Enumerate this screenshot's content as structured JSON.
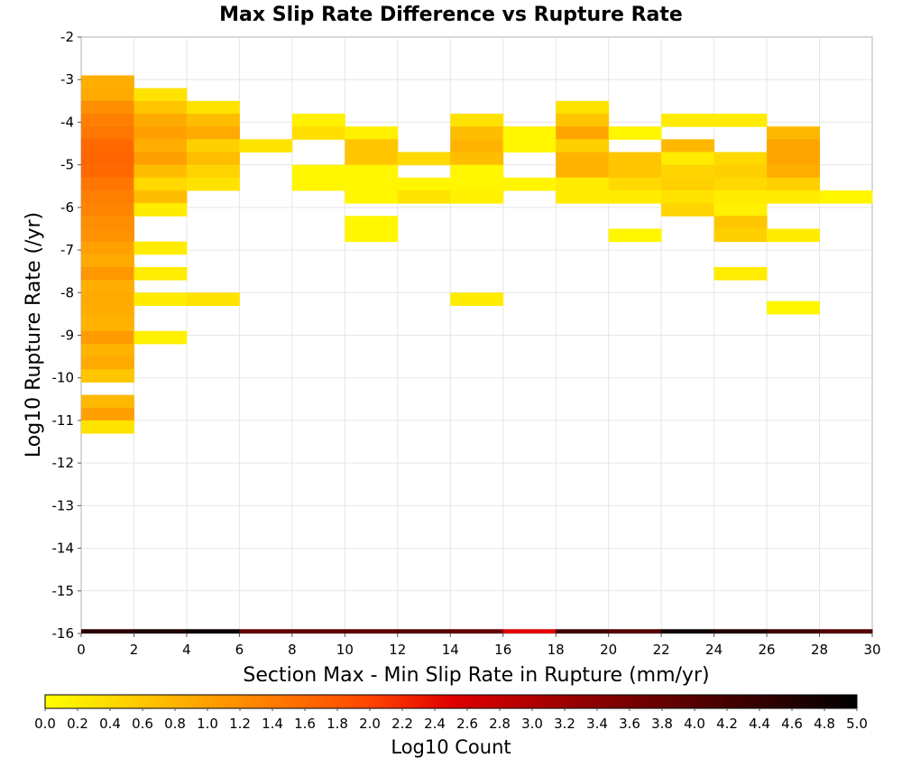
{
  "chart_data": {
    "type": "heatmap",
    "title": "Max Slip Rate Difference vs Rupture Rate",
    "xlabel": "Section Max - Min Slip Rate in Rupture (mm/yr)",
    "ylabel": "Log10 Rupture Rate (/yr)",
    "xlim": [
      0,
      30
    ],
    "ylim": [
      -16,
      -2
    ],
    "x_ticks": [
      "0",
      "2",
      "4",
      "6",
      "8",
      "10",
      "12",
      "14",
      "16",
      "18",
      "20",
      "22",
      "24",
      "26",
      "28",
      "30"
    ],
    "y_ticks": [
      "-2",
      "-3",
      "-4",
      "-5",
      "-6",
      "-7",
      "-8",
      "-9",
      "-10",
      "-11",
      "-12",
      "-13",
      "-14",
      "-15",
      "-16"
    ],
    "grid": true,
    "colorbar": {
      "label": "Log10 Count",
      "range": [
        0,
        5
      ],
      "ticks": [
        "0.0",
        "0.2",
        "0.4",
        "0.6",
        "0.8",
        "1.0",
        "1.2",
        "1.4",
        "1.6",
        "1.8",
        "2.0",
        "2.2",
        "2.4",
        "2.6",
        "2.8",
        "3.0",
        "3.2",
        "3.4",
        "3.6",
        "3.8",
        "4.0",
        "4.2",
        "4.4",
        "4.6",
        "4.8",
        "5.0"
      ],
      "colors": [
        "#ffff00",
        "#ffa000",
        "#ff4500",
        "#e00000",
        "#800000",
        "#000000"
      ]
    },
    "x_bin_width": 2,
    "y_bin_height": 0.3,
    "cells": [
      {
        "x": 1,
        "y": -3.05,
        "v": 0.85
      },
      {
        "x": 1,
        "y": -3.35,
        "v": 0.9
      },
      {
        "x": 1,
        "y": -3.65,
        "v": 1.2
      },
      {
        "x": 1,
        "y": -3.95,
        "v": 1.35
      },
      {
        "x": 1,
        "y": -4.25,
        "v": 1.45
      },
      {
        "x": 1,
        "y": -4.55,
        "v": 1.6
      },
      {
        "x": 1,
        "y": -4.85,
        "v": 1.65
      },
      {
        "x": 1,
        "y": -5.15,
        "v": 1.6
      },
      {
        "x": 1,
        "y": -5.45,
        "v": 1.45
      },
      {
        "x": 1,
        "y": -5.75,
        "v": 1.35
      },
      {
        "x": 1,
        "y": -6.05,
        "v": 1.3
      },
      {
        "x": 1,
        "y": -6.35,
        "v": 1.2
      },
      {
        "x": 1,
        "y": -6.65,
        "v": 1.15
      },
      {
        "x": 1,
        "y": -6.95,
        "v": 1.0
      },
      {
        "x": 1,
        "y": -7.25,
        "v": 0.9
      },
      {
        "x": 1,
        "y": -7.55,
        "v": 1.1
      },
      {
        "x": 1,
        "y": -7.85,
        "v": 0.85
      },
      {
        "x": 1,
        "y": -8.15,
        "v": 0.9
      },
      {
        "x": 1,
        "y": -8.45,
        "v": 0.85
      },
      {
        "x": 1,
        "y": -8.75,
        "v": 0.8
      },
      {
        "x": 1,
        "y": -9.05,
        "v": 1.05
      },
      {
        "x": 1,
        "y": -9.35,
        "v": 0.8
      },
      {
        "x": 1,
        "y": -9.65,
        "v": 0.9
      },
      {
        "x": 1,
        "y": -9.95,
        "v": 0.6
      },
      {
        "x": 1,
        "y": -10.55,
        "v": 0.75
      },
      {
        "x": 1,
        "y": -10.85,
        "v": 1.0
      },
      {
        "x": 1,
        "y": -11.15,
        "v": 0.3
      },
      {
        "x": 3,
        "y": -3.35,
        "v": 0.3
      },
      {
        "x": 3,
        "y": -3.65,
        "v": 0.6
      },
      {
        "x": 3,
        "y": -3.95,
        "v": 0.9
      },
      {
        "x": 3,
        "y": -4.25,
        "v": 1.0
      },
      {
        "x": 3,
        "y": -4.55,
        "v": 0.85
      },
      {
        "x": 3,
        "y": -4.85,
        "v": 1.0
      },
      {
        "x": 3,
        "y": -5.15,
        "v": 0.7
      },
      {
        "x": 3,
        "y": -5.45,
        "v": 0.4
      },
      {
        "x": 3,
        "y": -5.75,
        "v": 0.7
      },
      {
        "x": 3,
        "y": -6.05,
        "v": 0.2
      },
      {
        "x": 3,
        "y": -6.95,
        "v": 0.2
      },
      {
        "x": 3,
        "y": -7.55,
        "v": 0.2
      },
      {
        "x": 3,
        "y": -8.15,
        "v": 0.2
      },
      {
        "x": 3,
        "y": -9.05,
        "v": 0.15
      },
      {
        "x": 5,
        "y": -3.65,
        "v": 0.3
      },
      {
        "x": 5,
        "y": -3.95,
        "v": 0.7
      },
      {
        "x": 5,
        "y": -4.25,
        "v": 0.9
      },
      {
        "x": 5,
        "y": -4.55,
        "v": 0.5
      },
      {
        "x": 5,
        "y": -4.85,
        "v": 0.7
      },
      {
        "x": 5,
        "y": -5.15,
        "v": 0.45
      },
      {
        "x": 5,
        "y": -5.45,
        "v": 0.3
      },
      {
        "x": 5,
        "y": -8.15,
        "v": 0.3
      },
      {
        "x": 7,
        "y": -4.55,
        "v": 0.3
      },
      {
        "x": 9,
        "y": -3.95,
        "v": 0.15
      },
      {
        "x": 9,
        "y": -4.25,
        "v": 0.35
      },
      {
        "x": 9,
        "y": -5.15,
        "v": 0.1
      },
      {
        "x": 9,
        "y": -5.45,
        "v": 0.1
      },
      {
        "x": 11,
        "y": -4.25,
        "v": 0.15
      },
      {
        "x": 11,
        "y": -4.55,
        "v": 0.6
      },
      {
        "x": 11,
        "y": -4.85,
        "v": 0.6
      },
      {
        "x": 11,
        "y": -5.15,
        "v": 0.1
      },
      {
        "x": 11,
        "y": -5.45,
        "v": 0.1
      },
      {
        "x": 11,
        "y": -5.75,
        "v": 0.1
      },
      {
        "x": 11,
        "y": -6.35,
        "v": 0.1
      },
      {
        "x": 11,
        "y": -6.65,
        "v": 0.1
      },
      {
        "x": 13,
        "y": -4.85,
        "v": 0.4
      },
      {
        "x": 13,
        "y": -5.45,
        "v": 0.1
      },
      {
        "x": 13,
        "y": -5.75,
        "v": 0.3
      },
      {
        "x": 15,
        "y": -3.95,
        "v": 0.3
      },
      {
        "x": 15,
        "y": -4.25,
        "v": 0.7
      },
      {
        "x": 15,
        "y": -4.55,
        "v": 0.8
      },
      {
        "x": 15,
        "y": -4.85,
        "v": 0.7
      },
      {
        "x": 15,
        "y": -5.15,
        "v": 0.1
      },
      {
        "x": 15,
        "y": -5.45,
        "v": 0.1
      },
      {
        "x": 15,
        "y": -5.75,
        "v": 0.15
      },
      {
        "x": 15,
        "y": -8.15,
        "v": 0.2
      },
      {
        "x": 17,
        "y": -4.25,
        "v": 0.1
      },
      {
        "x": 17,
        "y": -4.55,
        "v": 0.1
      },
      {
        "x": 17,
        "y": -5.45,
        "v": 0.1
      },
      {
        "x": 19,
        "y": -3.65,
        "v": 0.3
      },
      {
        "x": 19,
        "y": -3.95,
        "v": 0.6
      },
      {
        "x": 19,
        "y": -4.25,
        "v": 0.95
      },
      {
        "x": 19,
        "y": -4.55,
        "v": 0.5
      },
      {
        "x": 19,
        "y": -4.85,
        "v": 0.8
      },
      {
        "x": 19,
        "y": -5.15,
        "v": 0.8
      },
      {
        "x": 19,
        "y": -5.45,
        "v": 0.2
      },
      {
        "x": 19,
        "y": -5.75,
        "v": 0.2
      },
      {
        "x": 21,
        "y": -4.25,
        "v": 0.1
      },
      {
        "x": 21,
        "y": -4.85,
        "v": 0.6
      },
      {
        "x": 21,
        "y": -5.15,
        "v": 0.6
      },
      {
        "x": 21,
        "y": -5.45,
        "v": 0.4
      },
      {
        "x": 21,
        "y": -5.75,
        "v": 0.2
      },
      {
        "x": 21,
        "y": -6.65,
        "v": 0.1
      },
      {
        "x": 23,
        "y": -3.95,
        "v": 0.2
      },
      {
        "x": 23,
        "y": -4.55,
        "v": 0.75
      },
      {
        "x": 23,
        "y": -4.85,
        "v": 0.2
      },
      {
        "x": 23,
        "y": -5.15,
        "v": 0.45
      },
      {
        "x": 23,
        "y": -5.45,
        "v": 0.5
      },
      {
        "x": 23,
        "y": -5.75,
        "v": 0.3
      },
      {
        "x": 23,
        "y": -6.05,
        "v": 0.45
      },
      {
        "x": 25,
        "y": -3.95,
        "v": 0.2
      },
      {
        "x": 25,
        "y": -4.85,
        "v": 0.4
      },
      {
        "x": 25,
        "y": -5.15,
        "v": 0.5
      },
      {
        "x": 25,
        "y": -5.45,
        "v": 0.4
      },
      {
        "x": 25,
        "y": -5.75,
        "v": 0.2
      },
      {
        "x": 25,
        "y": -6.05,
        "v": 0.15
      },
      {
        "x": 25,
        "y": -6.35,
        "v": 0.6
      },
      {
        "x": 25,
        "y": -6.65,
        "v": 0.5
      },
      {
        "x": 25,
        "y": -7.55,
        "v": 0.2
      },
      {
        "x": 27,
        "y": -4.25,
        "v": 0.75
      },
      {
        "x": 27,
        "y": -4.55,
        "v": 0.95
      },
      {
        "x": 27,
        "y": -4.85,
        "v": 0.95
      },
      {
        "x": 27,
        "y": -5.15,
        "v": 0.85
      },
      {
        "x": 27,
        "y": -5.45,
        "v": 0.5
      },
      {
        "x": 27,
        "y": -5.75,
        "v": 0.2
      },
      {
        "x": 27,
        "y": -6.65,
        "v": 0.2
      },
      {
        "x": 27,
        "y": -8.35,
        "v": 0.1
      },
      {
        "x": 29,
        "y": -5.75,
        "v": 0.1
      }
    ],
    "floor_row": {
      "y_center": -16,
      "height": 0.2,
      "values": [
        4.5,
        4.7,
        4.9,
        3.8,
        3.9,
        3.9,
        4.0,
        3.8,
        2.5,
        4.3,
        4.0,
        4.8,
        4.6,
        4.3,
        4.0
      ]
    }
  }
}
